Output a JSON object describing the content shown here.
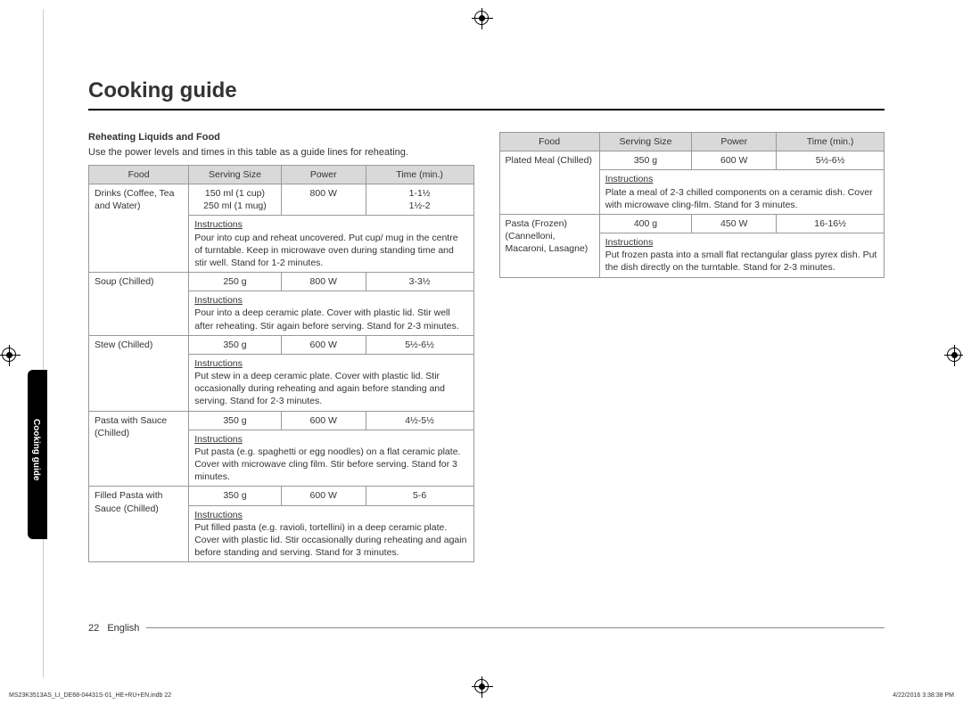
{
  "page": {
    "title": "Cooking guide",
    "section_tab": "Cooking guide",
    "page_number": "22",
    "language": "English",
    "print_file": "MS23K3513AS_LI_DE68-04431S-01_HE+RU+EN.indb   22",
    "print_time": "4/22/2016   3:38:38 PM"
  },
  "section": {
    "subheading": "Reheating Liquids and Food",
    "intro": "Use the power levels and times in this table as a guide lines for reheating."
  },
  "headers": {
    "food": "Food",
    "serving": "Serving Size",
    "power": "Power",
    "time": "Time (min.)",
    "instructions": "Instructions"
  },
  "left_rows": [
    {
      "food": "Drinks (Coffee, Tea and Water)",
      "serving1": "150 ml (1 cup)",
      "serving2": "250 ml (1 mug)",
      "power": "800 W",
      "time1": "1-1½",
      "time2": "1½-2",
      "instr": "Pour into cup and reheat uncovered. Put cup/ mug in the centre of turntable. Keep in microwave oven during standing time and stir well. Stand for 1-2 minutes."
    },
    {
      "food": "Soup (Chilled)",
      "serving": "250 g",
      "power": "800 W",
      "time": "3-3½",
      "instr": "Pour into a deep ceramic plate. Cover with plastic lid. Stir well after reheating. Stir again before serving. Stand for 2-3 minutes."
    },
    {
      "food": "Stew (Chilled)",
      "serving": "350 g",
      "power": "600 W",
      "time": "5½-6½",
      "instr": "Put stew in a deep ceramic plate. Cover with plastic lid. Stir occasionally during reheating and again before standing and serving. Stand for 2-3 minutes."
    },
    {
      "food": "Pasta with Sauce (Chilled)",
      "serving": "350 g",
      "power": "600 W",
      "time": "4½-5½",
      "instr": "Put pasta (e.g. spaghetti or egg noodles) on a flat ceramic plate. Cover with microwave cling film. Stir before serving. Stand for 3 minutes."
    },
    {
      "food": "Filled Pasta with Sauce (Chilled)",
      "serving": "350 g",
      "power": "600 W",
      "time": "5-6",
      "instr": "Put filled pasta (e.g. ravioli, tortellini) in a deep ceramic plate. Cover with plastic lid. Stir occasionally during reheating and again before standing and serving. Stand for 3 minutes."
    }
  ],
  "right_rows": [
    {
      "food": "Plated Meal (Chilled)",
      "serving": "350 g",
      "power": "600 W",
      "time": "5½-6½",
      "instr": "Plate a meal of 2-3 chilled components on a ceramic dish. Cover with microwave cling-film. Stand for 3 minutes."
    },
    {
      "food": "Pasta (Frozen) (Cannelloni, Macaroni, Lasagne)",
      "serving": "400 g",
      "power": "450 W",
      "time": "16-16½",
      "instr": "Put frozen pasta into a small flat rectangular glass pyrex dish. Put the dish directly on the turntable. Stand for 2-3 minutes."
    }
  ]
}
